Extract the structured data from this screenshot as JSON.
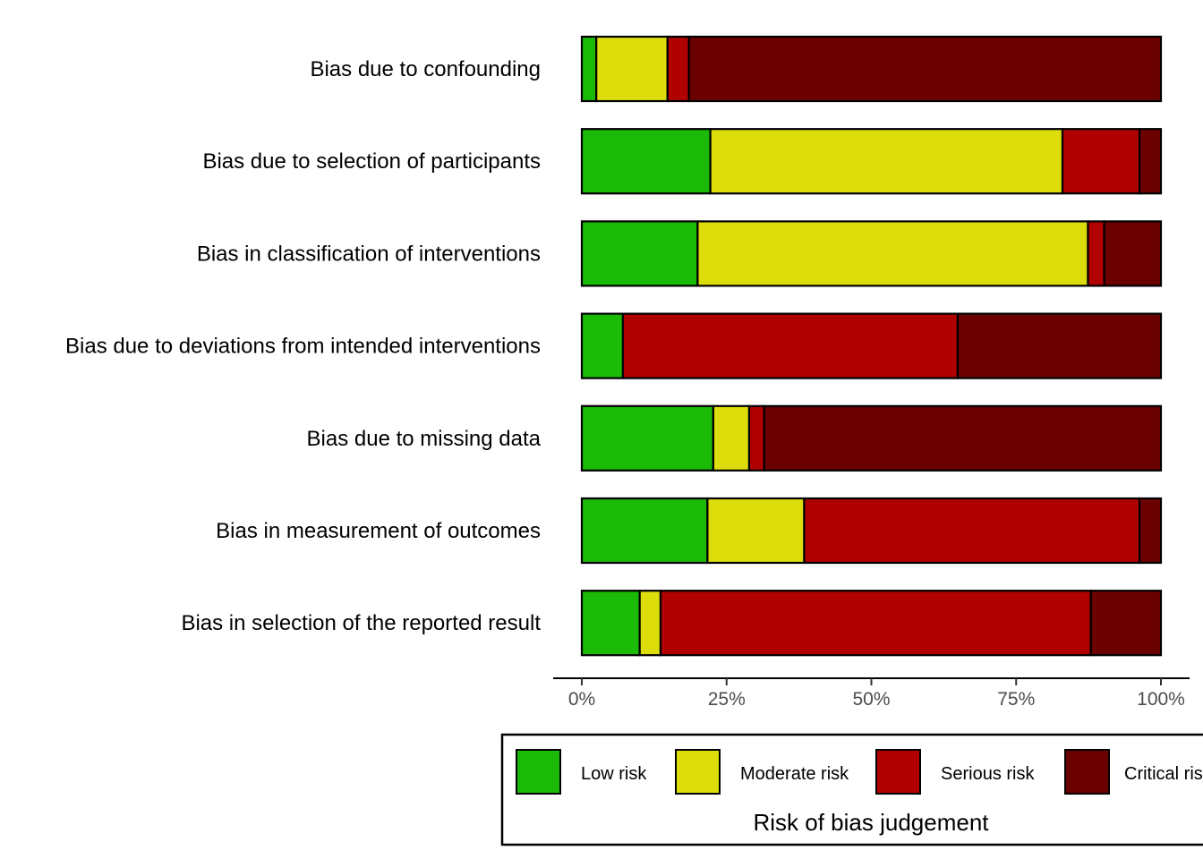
{
  "chart_data": {
    "type": "bar",
    "orientation": "horizontal",
    "stacked": true,
    "normalized": true,
    "categories": [
      "Bias due to confounding",
      "Bias due to selection of participants",
      "Bias in classification of interventions",
      "Bias due to deviations from intended interventions",
      "Bias due to missing data",
      "Bias in measurement of outcomes",
      "Bias in selection of the reported result"
    ],
    "series": [
      {
        "name": "Low risk",
        "color": "#1bba06",
        "values": [
          2.5,
          22.2,
          20.0,
          7.1,
          22.7,
          21.7,
          10.0
        ]
      },
      {
        "name": "Moderate risk",
        "color": "#dddd0c",
        "values": [
          12.3,
          60.8,
          67.4,
          0,
          6.2,
          16.7,
          3.6
        ]
      },
      {
        "name": "Serious risk",
        "color": "#b00000",
        "values": [
          3.7,
          13.3,
          2.8,
          57.8,
          2.6,
          57.9,
          74.3
        ]
      },
      {
        "name": "Critical risk",
        "color": "#6b0000",
        "values": [
          81.5,
          3.7,
          9.8,
          35.1,
          68.5,
          3.7,
          12.1
        ]
      }
    ],
    "xlim": [
      0,
      100
    ],
    "xticks": [
      "0%",
      "25%",
      "50%",
      "75%",
      "100%"
    ],
    "legend": {
      "title": "Risk of bias judgement",
      "position": "bottom"
    },
    "grid": false
  }
}
